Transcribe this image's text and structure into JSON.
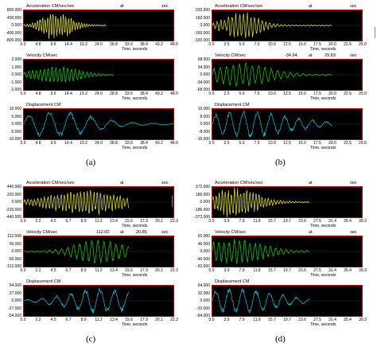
{
  "figures": [
    {
      "caption": "(a)",
      "panels": [
        {
          "title": "Acceleration CM/sec/sec",
          "at": "at",
          "value": "",
          "sec_value": "",
          "sec": "sec",
          "yticks": [
            "800.000",
            "400.000",
            "0.000",
            "-400.000",
            "-800.000"
          ],
          "xticks": [
            "0.0",
            "4.8",
            "9.6",
            "14.4",
            "19.2",
            "24.0",
            "28.8",
            "33.6",
            "38.4",
            "43.2",
            "48.0"
          ],
          "xlabel": "Time, seconds",
          "color": "#f0f000",
          "amp": 0.9,
          "center": 0.22,
          "decay": 0.12,
          "freq": 2.2,
          "tail": 0.55
        },
        {
          "title": "Velocity CM/sec",
          "at": "",
          "value": "",
          "sec_value": "",
          "sec": "",
          "yticks": [
            "2.000",
            "1.000",
            "0.000",
            "-1.000",
            "-2.000"
          ],
          "xticks": [
            "0.0",
            "4.8",
            "9.6",
            "14.4",
            "19.2",
            "24.0",
            "28.8",
            "33.6",
            "38.4",
            "43.2",
            "48.0"
          ],
          "xlabel": "Time, seconds",
          "color": "#00e000",
          "amp": 0.55,
          "center": 0.22,
          "decay": 0.2,
          "freq": 1.6,
          "tail": 0.6
        },
        {
          "title": "Displacement CM",
          "at": "",
          "value": "",
          "sec_value": "",
          "sec": "",
          "yticks": [
            "10.000",
            "5.000",
            "0.000",
            "-5.000",
            "-10.000"
          ],
          "xticks": [
            "0.0",
            "4.8",
            "9.6",
            "14.4",
            "19.2",
            "24.0",
            "28.8",
            "33.6",
            "38.4",
            "43.2",
            "48.0"
          ],
          "xlabel": "Time, seconds",
          "color": "#00c8e0",
          "amp": 0.9,
          "center": 0.2,
          "decay": 0.35,
          "freq": 0.5,
          "tail": 1.0
        }
      ]
    },
    {
      "caption": "(b)",
      "panels": [
        {
          "title": "Acceleration CM/sec/sec",
          "at": "at",
          "value": "",
          "sec_value": "",
          "sec": "sec",
          "yticks": [
            "320.000",
            "160.000",
            "0.000",
            "-160.000",
            "-320.000"
          ],
          "xticks": [
            "0.0",
            "2.5",
            "5.0",
            "7.5",
            "10.0",
            "12.5",
            "15.0",
            "17.5",
            "20.0",
            "22.5",
            "25.0"
          ],
          "xlabel": "Time, seconds",
          "color": "#f0f000",
          "amp": 0.85,
          "center": 0.2,
          "decay": 0.15,
          "freq": 2.2,
          "tail": 0.8
        },
        {
          "title": "Velocity CM/sec",
          "at": "at",
          "value": "-34.94",
          "sec_value": "29.83",
          "sec": "sec",
          "yticks": [
            "68.000",
            "34.000",
            "0.000",
            "-34.000",
            "-68.000"
          ],
          "xticks": [
            "0.0",
            "2.5",
            "5.0",
            "7.5",
            "10.0",
            "12.5",
            "15.0",
            "17.5",
            "20.0",
            "22.5",
            "25.0"
          ],
          "xlabel": "Time, seconds",
          "color": "#00e000",
          "amp": 0.8,
          "center": 0.2,
          "decay": 0.25,
          "freq": 1.3,
          "tail": 0.8
        },
        {
          "title": "Displacement CM",
          "at": "",
          "value": "",
          "sec_value": "",
          "sec": "",
          "yticks": [
            "16.000",
            "8.000",
            "0.000",
            "-8.000",
            "-16.000"
          ],
          "xticks": [
            "0.0",
            "2.5",
            "5.0",
            "7.5",
            "10.0",
            "12.5",
            "15.0",
            "17.5",
            "20.0",
            "22.5",
            "25.0"
          ],
          "xlabel": "Time, seconds",
          "color": "#00c8e0",
          "amp": 0.9,
          "center": 0.22,
          "decay": 0.4,
          "freq": 0.6,
          "tail": 0.8
        }
      ]
    },
    {
      "caption": "(c)",
      "panels": [
        {
          "title": "Acceleration CM/sec/sec",
          "at": "at",
          "value": "",
          "sec_value": "",
          "sec": "sec",
          "yticks": [
            "440.000",
            "220.000",
            "0.000",
            "-220.000",
            "-440.000"
          ],
          "xticks": [
            "0.0",
            "2.2",
            "4.5",
            "6.7",
            "8.9",
            "11.2",
            "13.4",
            "15.6",
            "17.9",
            "20.1",
            "22.3"
          ],
          "xlabel": "Time, seconds",
          "color": "#f0f000",
          "amp": 0.8,
          "center": 0.4,
          "decay": 0.3,
          "freq": 2.2,
          "tail": 0.7
        },
        {
          "title": "Velocity CM/sec",
          "at": "at",
          "value": "112.00",
          "sec_value": "20.85",
          "sec": "sec",
          "yticks": [
            "112.000",
            "56.000",
            "0.000",
            "-56.000",
            "-112.000"
          ],
          "xticks": [
            "0.0",
            "2.2",
            "4.5",
            "6.7",
            "8.9",
            "11.2",
            "13.4",
            "15.6",
            "17.9",
            "20.1",
            "22.3"
          ],
          "xlabel": "Time, seconds",
          "color": "#00e000",
          "amp": 0.85,
          "center": 0.5,
          "decay": 0.2,
          "freq": 1.2,
          "tail": 0.7
        },
        {
          "title": "Displacement CM",
          "at": "",
          "value": "",
          "sec_value": "",
          "sec": "",
          "yticks": [
            "54.000",
            "27.000",
            "0.000",
            "-27.000",
            "-54.000"
          ],
          "xticks": [
            "0.0",
            "2.2",
            "4.5",
            "6.7",
            "8.9",
            "11.2",
            "13.4",
            "15.6",
            "17.9",
            "20.1",
            "22.3"
          ],
          "xlabel": "Time, seconds",
          "color": "#00c8e0",
          "amp": 0.85,
          "center": 0.52,
          "decay": 0.3,
          "freq": 0.5,
          "tail": 0.7
        }
      ]
    },
    {
      "caption": "(d)",
      "panels": [
        {
          "title": "Acceleration CM/sec/sec",
          "at": "at",
          "value": "",
          "sec_value": "",
          "sec": "sec",
          "yticks": [
            "372.000",
            "186.000",
            "0.000",
            "-186.000",
            "-372.000"
          ],
          "xticks": [
            "0.0",
            "3.9",
            "7.9",
            "11.8",
            "15.7",
            "19.7",
            "23.6",
            "27.5",
            "31.4",
            "35.4",
            "39.3"
          ],
          "xlabel": "Time, seconds",
          "color": "#f0f000",
          "amp": 0.85,
          "center": 0.15,
          "decay": 0.2,
          "freq": 2.2,
          "tail": 0.65
        },
        {
          "title": "Velocity CM/sec",
          "at": "at",
          "value": "",
          "sec_value": "",
          "sec": "sec",
          "yticks": [
            "92.000",
            "46.000",
            "0.000",
            "-46.000",
            "-92.000"
          ],
          "xticks": [
            "0.0",
            "3.9",
            "7.9",
            "11.8",
            "15.7",
            "19.7",
            "23.6",
            "27.5",
            "31.4",
            "35.4",
            "39.3"
          ],
          "xlabel": "Time, seconds",
          "color": "#00e000",
          "amp": 0.85,
          "center": 0.15,
          "decay": 0.25,
          "freq": 1.3,
          "tail": 0.65
        },
        {
          "title": "Displacement CM",
          "at": "",
          "value": "",
          "sec_value": "",
          "sec": "",
          "yticks": [
            "64.000",
            "32.000",
            "0.000",
            "-32.000",
            "-64.000"
          ],
          "xticks": [
            "0.0",
            "3.9",
            "7.9",
            "11.8",
            "15.7",
            "19.7",
            "23.6",
            "27.5",
            "31.4",
            "35.4",
            "39.3"
          ],
          "xlabel": "Time, seconds",
          "color": "#00c8e0",
          "amp": 0.85,
          "center": 0.15,
          "decay": 0.35,
          "freq": 0.5,
          "tail": 0.65
        }
      ]
    }
  ]
}
